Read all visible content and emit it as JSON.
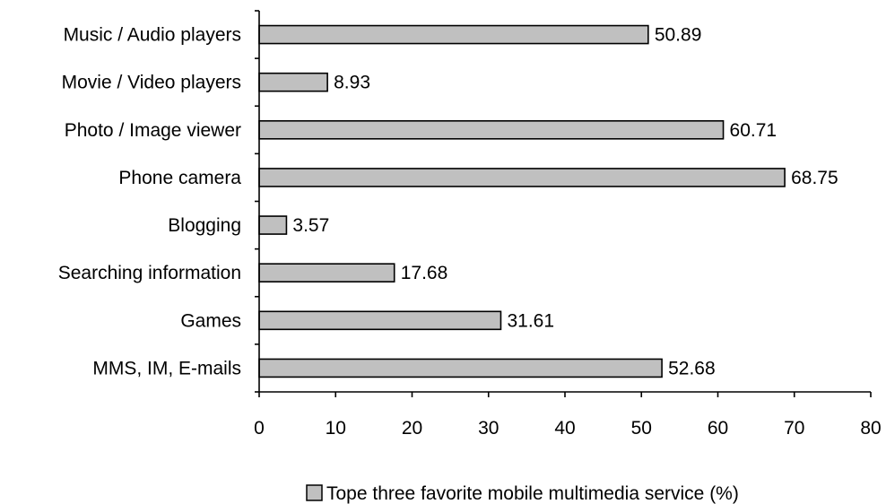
{
  "chart_data": {
    "type": "bar",
    "orientation": "horizontal",
    "categories": [
      "Music / Audio players",
      "Movie / Video players",
      "Photo / Image viewer",
      "Phone camera",
      "Blogging",
      "Searching information",
      "Games",
      "MMS, IM, E-mails"
    ],
    "series": [
      {
        "name": "Tope three favorite mobile multimedia service (%)",
        "values": [
          50.89,
          8.93,
          60.71,
          68.75,
          3.57,
          17.68,
          31.61,
          52.68
        ],
        "value_labels": [
          "50.89",
          "8.93",
          "60.71",
          "68.75",
          "3.57",
          "17.68",
          "31.61",
          "52.68"
        ],
        "color": "#c0c0c0"
      }
    ],
    "xlim": [
      0,
      80
    ],
    "xticks": [
      0,
      10,
      20,
      30,
      40,
      50,
      60,
      70,
      80
    ],
    "xtick_labels": [
      "0",
      "10",
      "20",
      "30",
      "40",
      "50",
      "60",
      "70",
      "80"
    ],
    "grid": false,
    "legend": {
      "position": "bottom-right"
    }
  }
}
